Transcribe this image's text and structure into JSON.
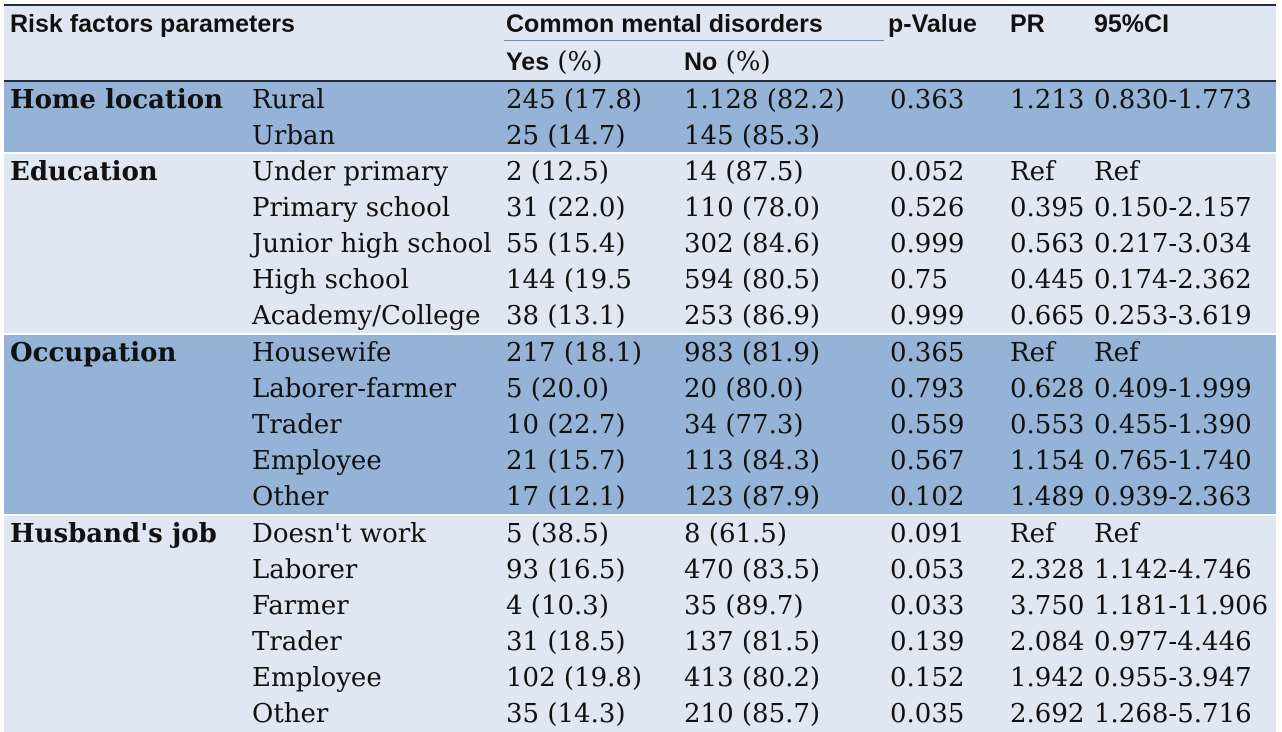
{
  "header": {
    "col_risk": "Risk factors parameters",
    "col_cmd": "Common mental disorders",
    "col_p": "p-Value",
    "col_pr": "PR",
    "col_ci": "95%CI",
    "yes_bold": "Yes",
    "yes_unit": " (%)",
    "no_bold": "No",
    "no_unit": " (%)"
  },
  "groups": {
    "home": {
      "label": "Home location",
      "rows": [
        {
          "factor": "Rural",
          "yes": "245 (17.8)",
          "no": "1.128 (82.2)",
          "p": "0.363",
          "pr": "1.213",
          "ci": "0.830-1.773"
        },
        {
          "factor": "Urban",
          "yes": "25 (14.7)",
          "no": "145 (85.3)",
          "p": "",
          "pr": "",
          "ci": ""
        }
      ]
    },
    "education": {
      "label": "Education",
      "rows": [
        {
          "factor": "Under primary",
          "yes": "2 (12.5)",
          "no": "14 (87.5)",
          "p": "0.052",
          "pr": "Ref",
          "ci": "Ref"
        },
        {
          "factor": "Primary school",
          "yes": "31 (22.0)",
          "no": "110 (78.0)",
          "p": "0.526",
          "pr": "0.395",
          "ci": "0.150-2.157"
        },
        {
          "factor": "Junior high school",
          "yes": "55 (15.4)",
          "no": "302 (84.6)",
          "p": "0.999",
          "pr": "0.563",
          "ci": "0.217-3.034"
        },
        {
          "factor": "High school",
          "yes": "144 (19.5",
          "no": "594 (80.5)",
          "p": "0.75",
          "pr": "0.445",
          "ci": "0.174-2.362"
        },
        {
          "factor": "Academy/College",
          "yes": "38 (13.1)",
          "no": "253 (86.9)",
          "p": "0.999",
          "pr": "0.665",
          "ci": "0.253-3.619"
        }
      ]
    },
    "occupation": {
      "label": "Occupation",
      "rows": [
        {
          "factor": "Housewife",
          "yes": "217 (18.1)",
          "no": "983 (81.9)",
          "p": "0.365",
          "pr": "Ref",
          "ci": "Ref"
        },
        {
          "factor": "Laborer-farmer",
          "yes": "5 (20.0)",
          "no": "20 (80.0)",
          "p": "0.793",
          "pr": "0.628",
          "ci": "0.409-1.999"
        },
        {
          "factor": "Trader",
          "yes": "10 (22.7)",
          "no": "34 (77.3)",
          "p": "0.559",
          "pr": "0.553",
          "ci": "0.455-1.390"
        },
        {
          "factor": "Employee",
          "yes": "21 (15.7)",
          "no": "113 (84.3)",
          "p": "0.567",
          "pr": "1.154",
          "ci": "0.765-1.740"
        },
        {
          "factor": "Other",
          "yes": "17 (12.1)",
          "no": "123 (87.9)",
          "p": "0.102",
          "pr": "1.489",
          "ci": "0.939-2.363"
        }
      ]
    },
    "husband": {
      "label": "Husband's job",
      "rows": [
        {
          "factor": "Doesn't work",
          "yes": "5 (38.5)",
          "no": "8 (61.5)",
          "p": "0.091",
          "pr": "Ref",
          "ci": "Ref"
        },
        {
          "factor": "Laborer",
          "yes": "93 (16.5)",
          "no": "470 (83.5)",
          "p": "0.053",
          "pr": "2.328",
          "ci": "1.142-4.746"
        },
        {
          "factor": "Farmer",
          "yes": "4 (10.3)",
          "no": "35 (89.7)",
          "p": "0.033",
          "pr": "3.750",
          "ci": "1.181-11.906"
        },
        {
          "factor": "Trader",
          "yes": "31 (18.5)",
          "no": "137 (81.5)",
          "p": "0.139",
          "pr": "2.084",
          "ci": "0.977-4.446"
        },
        {
          "factor": "Employee",
          "yes": "102 (19.8)",
          "no": "413 (80.2)",
          "p": "0.152",
          "pr": "1.942",
          "ci": "0.955-3.947"
        },
        {
          "factor": "Other",
          "yes": "35 (14.3)",
          "no": "210 (85.7)",
          "p": "0.035",
          "pr": "2.692",
          "ci": "1.268-5.716"
        }
      ]
    }
  }
}
